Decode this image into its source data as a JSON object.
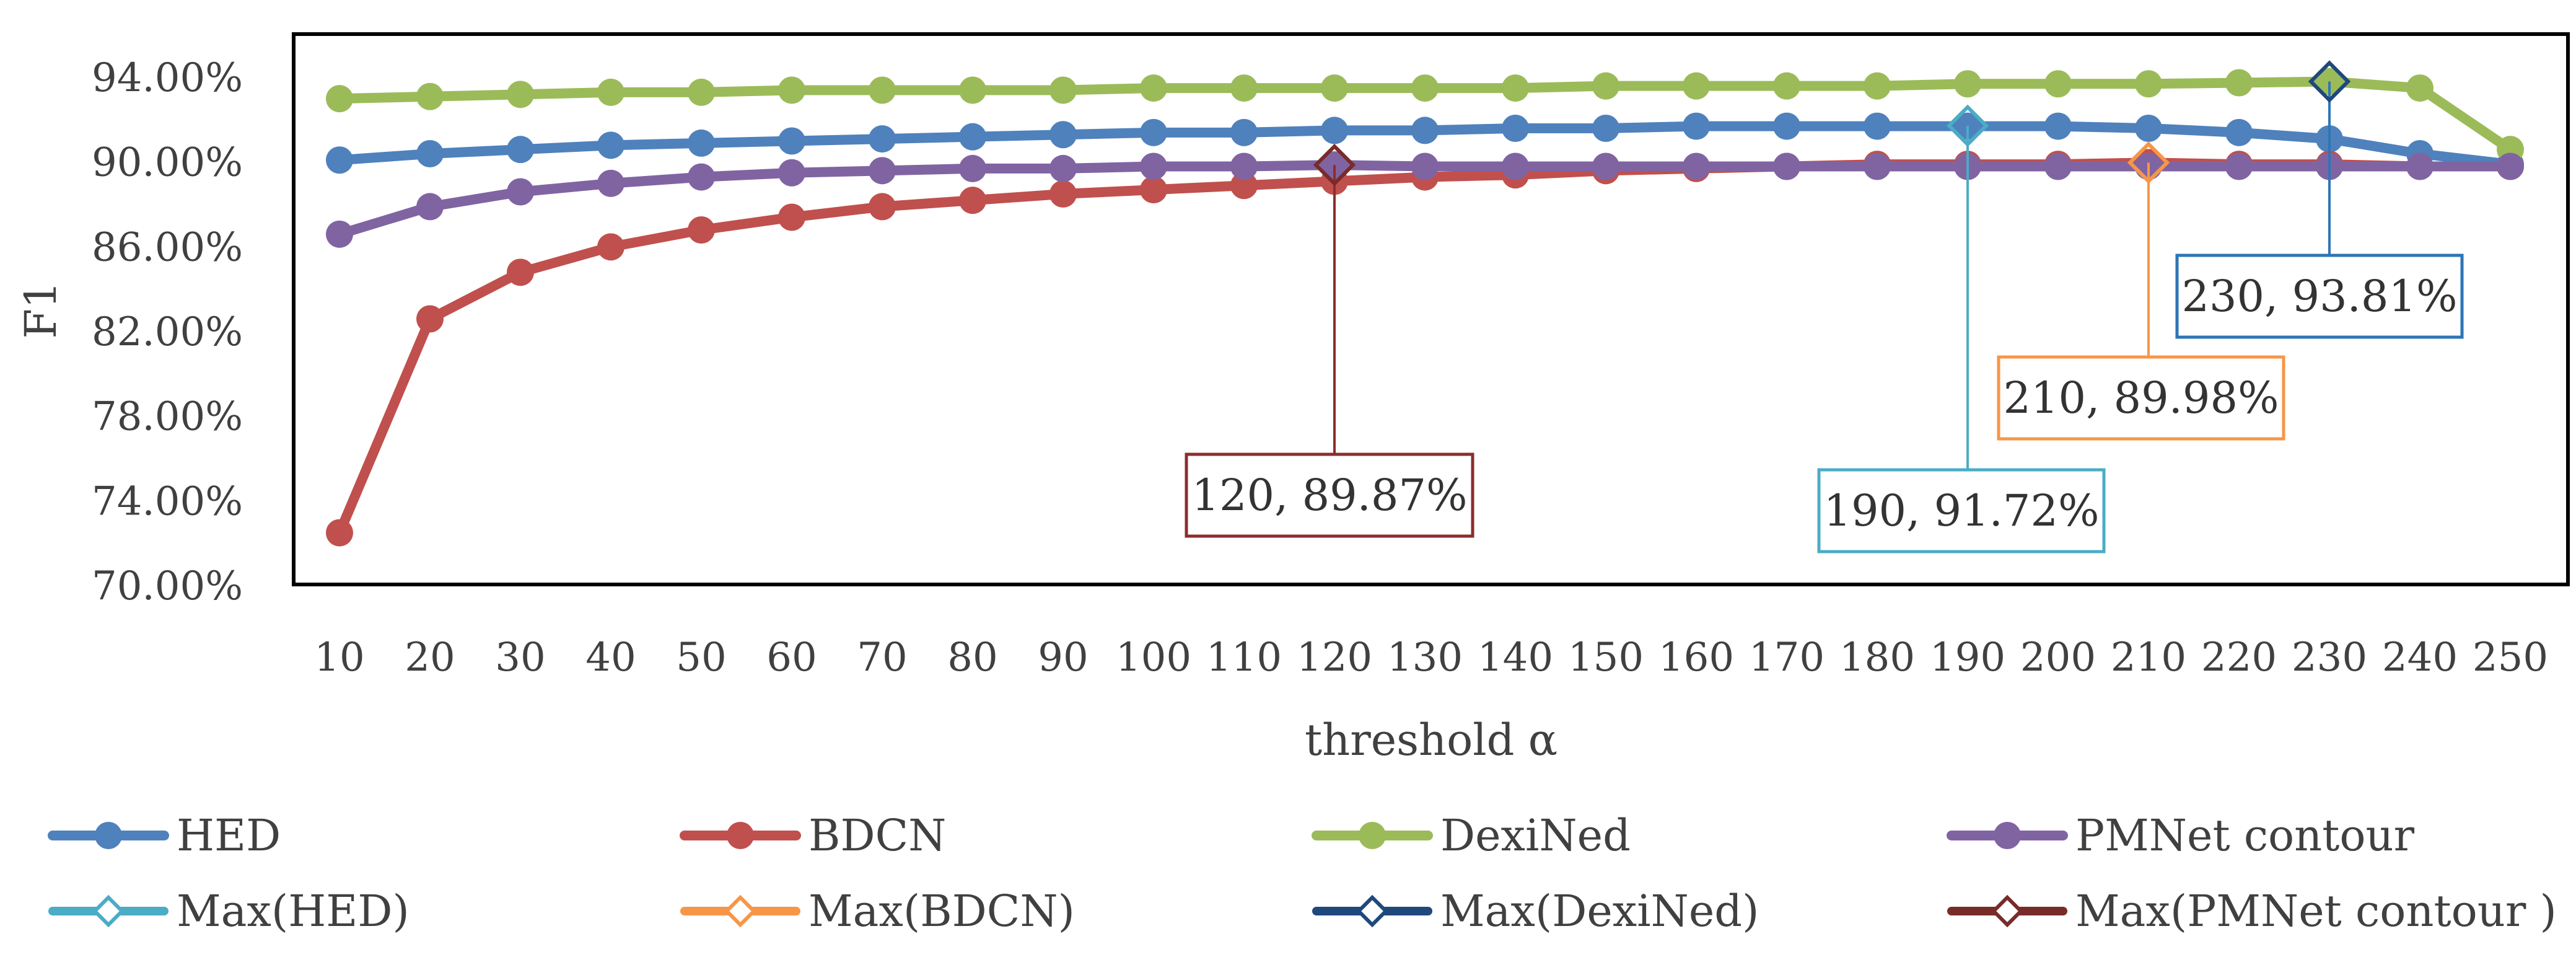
{
  "chart_data": {
    "type": "line",
    "title": "",
    "xlabel": "threshold α",
    "ylabel": "F1",
    "ylim": [
      0.7,
      0.94
    ],
    "yticks": [
      "70.00%",
      "74.00%",
      "78.00%",
      "82.00%",
      "86.00%",
      "90.00%",
      "94.00%"
    ],
    "ytick_values": [
      0.7,
      0.74,
      0.78,
      0.82,
      0.86,
      0.9,
      0.94
    ],
    "x": [
      10,
      20,
      30,
      40,
      50,
      60,
      70,
      80,
      90,
      100,
      110,
      120,
      130,
      140,
      150,
      160,
      170,
      180,
      190,
      200,
      210,
      220,
      230,
      240,
      250
    ],
    "xtick_labels": [
      "10",
      "20",
      "30",
      "40",
      "50",
      "60",
      "70",
      "80",
      "90",
      "100",
      "110",
      "120",
      "130",
      "140",
      "150",
      "160",
      "170",
      "180",
      "190",
      "200",
      "210",
      "220",
      "230",
      "240",
      "250"
    ],
    "grid": false,
    "legend_position": "bottom",
    "series": [
      {
        "name": "HED",
        "color": "#4f81bd",
        "values": [
          0.901,
          0.904,
          0.906,
          0.908,
          0.909,
          0.91,
          0.911,
          0.912,
          0.913,
          0.914,
          0.914,
          0.915,
          0.915,
          0.916,
          0.916,
          0.917,
          0.917,
          0.917,
          0.917,
          0.917,
          0.916,
          0.914,
          0.911,
          0.904,
          0.899
        ]
      },
      {
        "name": "BDCN",
        "color": "#c0504d",
        "values": [
          0.725,
          0.826,
          0.848,
          0.86,
          0.868,
          0.874,
          0.879,
          0.882,
          0.885,
          0.887,
          0.889,
          0.891,
          0.893,
          0.894,
          0.896,
          0.897,
          0.898,
          0.899,
          0.899,
          0.899,
          0.8998,
          0.899,
          0.899,
          0.898,
          0.898
        ]
      },
      {
        "name": "DexiNed",
        "color": "#9bbb59",
        "values": [
          0.93,
          0.931,
          0.932,
          0.933,
          0.933,
          0.934,
          0.934,
          0.934,
          0.934,
          0.935,
          0.935,
          0.935,
          0.935,
          0.935,
          0.936,
          0.936,
          0.936,
          0.936,
          0.937,
          0.937,
          0.937,
          0.9375,
          0.9381,
          0.935,
          0.906
        ]
      },
      {
        "name": "PMNet contour",
        "color": "#8064a2",
        "values": [
          0.866,
          0.879,
          0.886,
          0.89,
          0.893,
          0.895,
          0.896,
          0.897,
          0.897,
          0.898,
          0.898,
          0.8987,
          0.898,
          0.898,
          0.898,
          0.898,
          0.898,
          0.898,
          0.898,
          0.898,
          0.898,
          0.898,
          0.898,
          0.898,
          0.898
        ]
      }
    ],
    "max_markers": [
      {
        "name": "Max(HED)",
        "color": "#4bacc6",
        "x": 190,
        "y": 0.9172,
        "label": "190, 91.72%"
      },
      {
        "name": "Max(BDCN)",
        "color": "#f79646",
        "x": 210,
        "y": 0.8998,
        "label": "210, 89.98%"
      },
      {
        "name": "Max(DexiNed)",
        "color": "#1f497d",
        "x": 230,
        "y": 0.9381,
        "label": "230, 93.81%"
      },
      {
        "name": "Max(PMNet contour )",
        "color": "#772c2a",
        "x": 120,
        "y": 0.8987,
        "label": "120, 89.87%"
      }
    ],
    "callout_box_colors": {
      "Max(HED)": "#4bacc6",
      "Max(BDCN)": "#f79646",
      "Max(DexiNed)": "#2e75b6",
      "Max(PMNet contour )": "#8b2e2c"
    }
  }
}
